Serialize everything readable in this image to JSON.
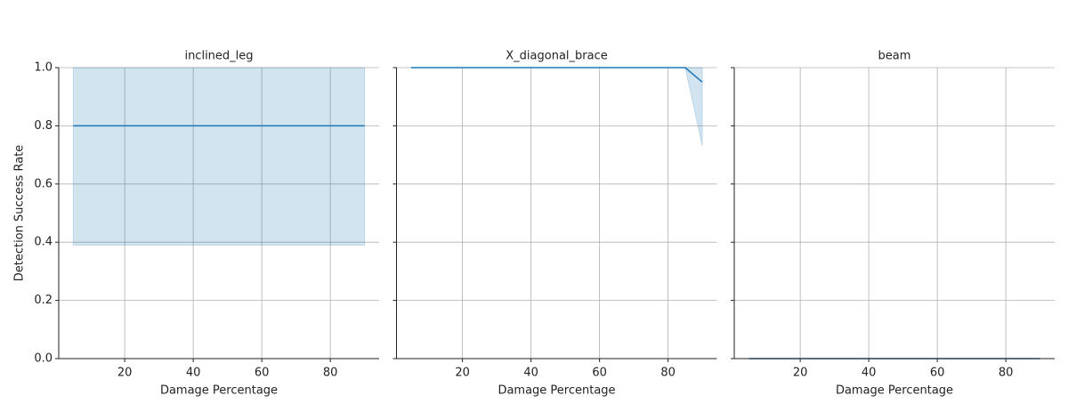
{
  "chart_data": [
    {
      "type": "line",
      "title": "inclined_leg",
      "xlabel": "Damage Percentage",
      "ylabel": "Detection Success Rate",
      "x": [
        5,
        10,
        15,
        20,
        25,
        30,
        35,
        40,
        45,
        50,
        55,
        60,
        65,
        70,
        75,
        80,
        85,
        90
      ],
      "values": [
        0.8,
        0.8,
        0.8,
        0.8,
        0.8,
        0.8,
        0.8,
        0.8,
        0.8,
        0.8,
        0.8,
        0.8,
        0.8,
        0.8,
        0.8,
        0.8,
        0.8,
        0.8
      ],
      "lower": [
        0.39,
        0.39,
        0.39,
        0.39,
        0.39,
        0.39,
        0.39,
        0.39,
        0.39,
        0.39,
        0.39,
        0.39,
        0.39,
        0.39,
        0.39,
        0.39,
        0.39,
        0.39
      ],
      "upper": [
        1,
        1,
        1,
        1,
        1,
        1,
        1,
        1,
        1,
        1,
        1,
        1,
        1,
        1,
        1,
        1,
        1,
        1
      ],
      "color": "#1f77b4",
      "xlim": [
        0.75,
        94.25
      ],
      "ylim": [
        0,
        1
      ],
      "xticks": [
        20,
        40,
        60,
        80
      ],
      "yticks": [
        {
          "value": 0,
          "label": "0.0"
        },
        0.2,
        0.4,
        0.6,
        0.8,
        {
          "value": 1,
          "label": "1.0"
        }
      ],
      "grid": true
    },
    {
      "type": "line",
      "title": "X_diagonal_brace",
      "xlabel": "Damage Percentage",
      "x": [
        5,
        10,
        15,
        20,
        25,
        30,
        35,
        40,
        45,
        50,
        55,
        60,
        65,
        70,
        75,
        80,
        85,
        90
      ],
      "values": [
        1,
        1,
        1,
        1,
        1,
        1,
        1,
        1,
        1,
        1,
        1,
        1,
        1,
        1,
        1,
        1,
        1,
        0.95
      ],
      "lower": [
        1,
        1,
        1,
        1,
        1,
        1,
        1,
        1,
        1,
        1,
        1,
        1,
        1,
        1,
        1,
        1,
        1,
        0.73
      ],
      "upper": [
        1,
        1,
        1,
        1,
        1,
        1,
        1,
        1,
        1,
        1,
        1,
        1,
        1,
        1,
        1,
        1,
        1,
        1
      ],
      "color": "#1f77b4",
      "xlim": [
        0.75,
        94.25
      ],
      "ylim": [
        0,
        1
      ],
      "xticks": [
        20,
        40,
        60,
        80
      ],
      "yticks": [
        0,
        0.2,
        0.4,
        0.6,
        0.8,
        1
      ],
      "grid": true
    },
    {
      "type": "line",
      "title": "beam",
      "xlabel": "Damage Percentage",
      "x": [
        5,
        10,
        15,
        20,
        25,
        30,
        35,
        40,
        45,
        50,
        55,
        60,
        65,
        70,
        75,
        80,
        85,
        90
      ],
      "values": [
        0,
        0,
        0,
        0,
        0,
        0,
        0,
        0,
        0,
        0,
        0,
        0,
        0,
        0,
        0,
        0,
        0,
        0
      ],
      "lower": [
        0,
        0,
        0,
        0,
        0,
        0,
        0,
        0,
        0,
        0,
        0,
        0,
        0,
        0,
        0,
        0,
        0,
        0
      ],
      "upper": [
        0,
        0,
        0,
        0,
        0,
        0,
        0,
        0,
        0,
        0,
        0,
        0,
        0,
        0,
        0,
        0,
        0,
        0
      ],
      "color": "#1f77b4",
      "xlim": [
        0.75,
        94.25
      ],
      "ylim": [
        0,
        1
      ],
      "xticks": [
        20,
        40,
        60,
        80
      ],
      "yticks": [
        0,
        0.2,
        0.4,
        0.6,
        0.8,
        1
      ],
      "grid": true
    }
  ]
}
